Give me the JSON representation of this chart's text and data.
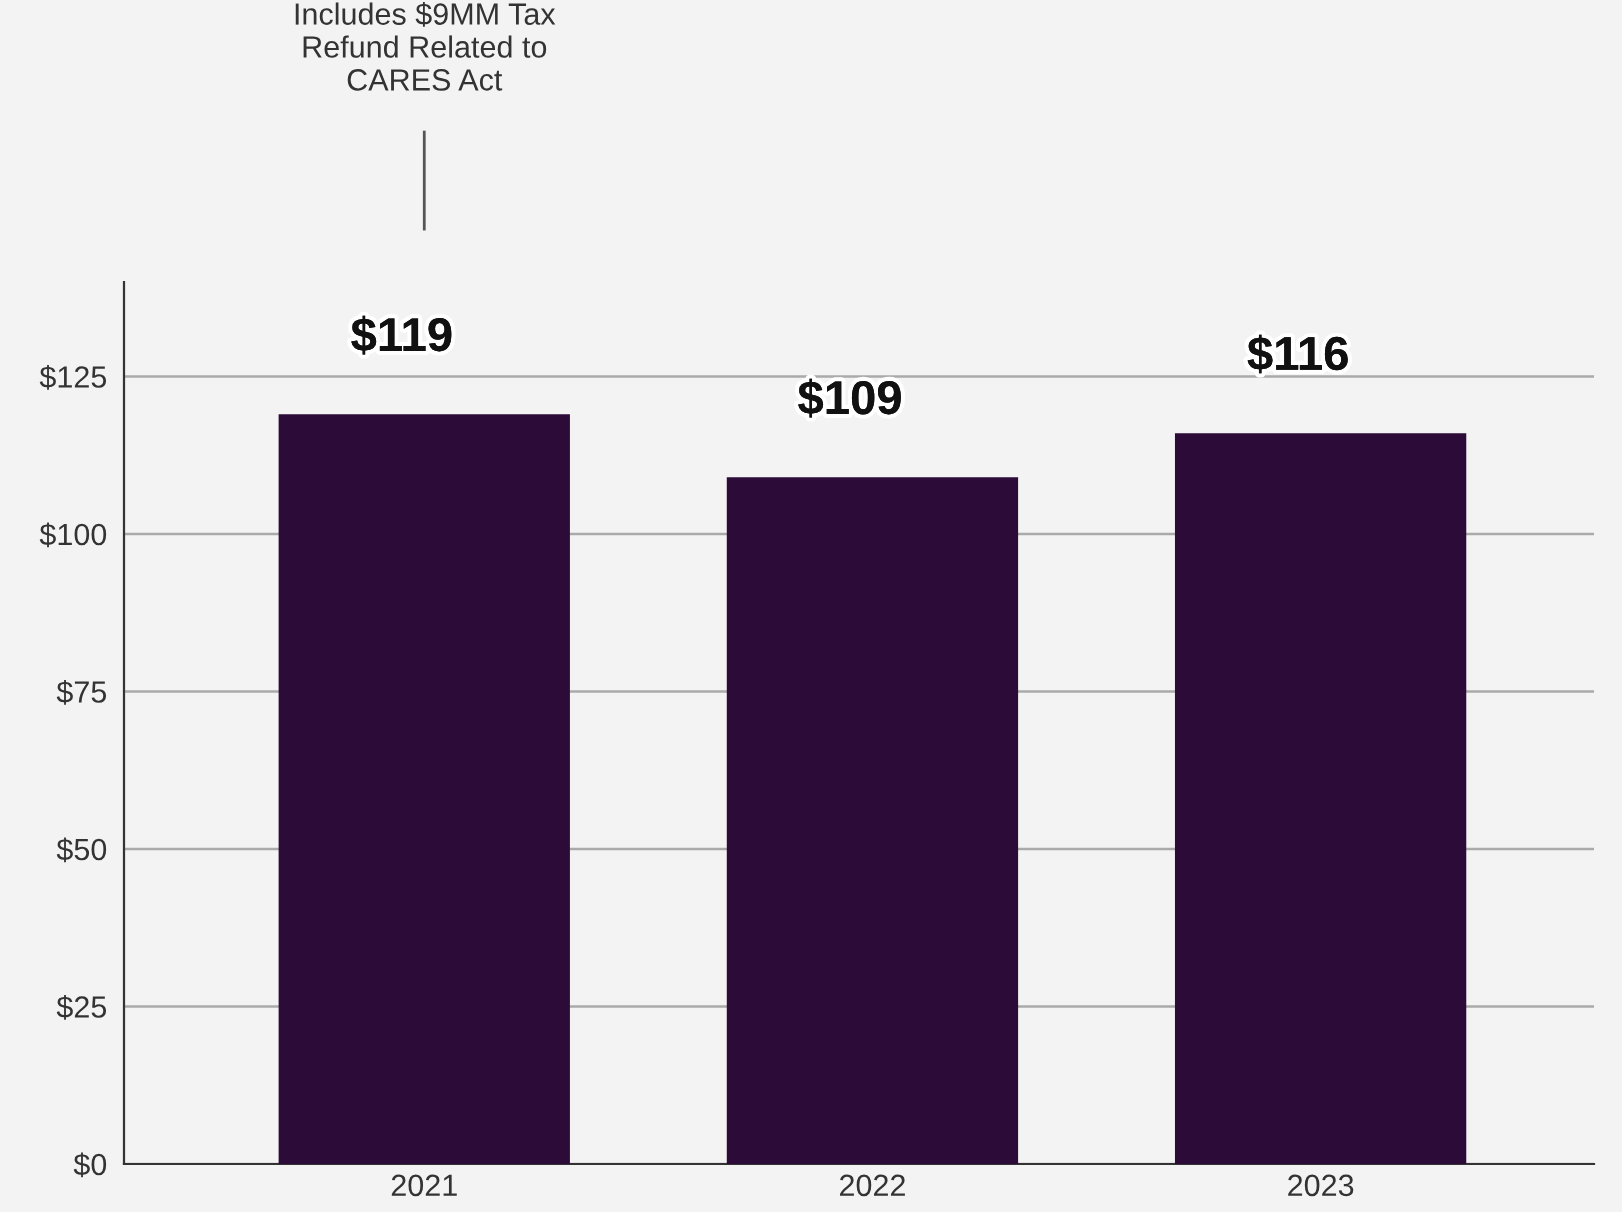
{
  "chart_data": {
    "type": "bar",
    "categories": [
      "2021",
      "2022",
      "2023"
    ],
    "values": [
      119,
      109,
      116
    ],
    "color": "#2c0b38",
    "value_labels": [
      "$119",
      "$109",
      "$116"
    ],
    "ylim": [
      0,
      140
    ],
    "yticks": [
      {
        "value": 0,
        "label": "$0"
      },
      {
        "value": 25,
        "label": "$25"
      },
      {
        "value": 50,
        "label": "$50"
      },
      {
        "value": 75,
        "label": "$75"
      },
      {
        "value": 100,
        "label": "$100"
      },
      {
        "value": 125,
        "label": "$125"
      }
    ],
    "grid": "y",
    "legend": false,
    "annotations": [
      "Includes $9MM Tax\nRefund Related to\nCARES Act"
    ]
  }
}
